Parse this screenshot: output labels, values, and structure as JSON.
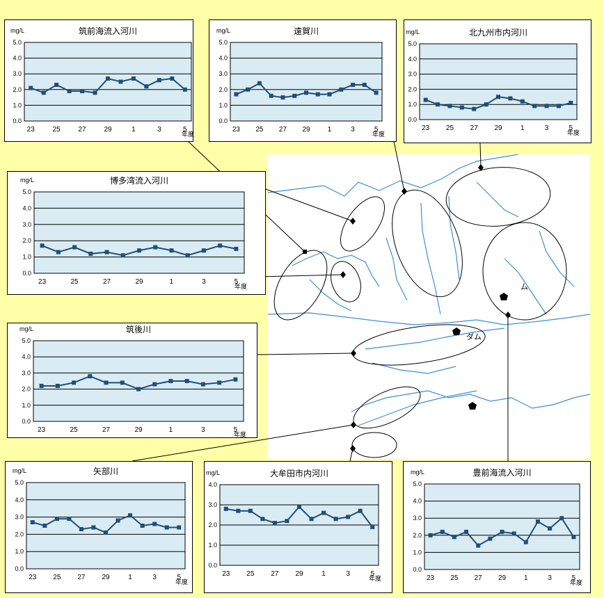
{
  "colors": {
    "background": "#ffffa8",
    "plot_bg": "#d9ecf3",
    "series": "#1f4e79",
    "grid": "#000000",
    "map_line": "#3a8fd8"
  },
  "common": {
    "unit": "mg/L",
    "year_suffix": "年度"
  },
  "map": {
    "labels": [
      "ダム",
      "ム"
    ]
  },
  "chart_data": [
    {
      "type": "line",
      "title": "筑前海流入河川",
      "categories": [
        "23",
        "24",
        "25",
        "26",
        "27",
        "28",
        "29",
        "30",
        "1",
        "2",
        "3",
        "4",
        "5"
      ],
      "ylim": [
        0,
        5
      ],
      "ylabel": "mg/L",
      "xlabel": "年度",
      "yticks": [
        "0.0",
        "1.0",
        "2.0",
        "3.0",
        "4.0",
        "5.0"
      ],
      "xticks": [
        "23",
        "25",
        "27",
        "29",
        "1",
        "3",
        "5"
      ],
      "values": [
        2.1,
        1.8,
        2.3,
        1.9,
        1.9,
        1.8,
        2.7,
        2.5,
        2.7,
        2.2,
        2.6,
        2.7,
        2.0
      ]
    },
    {
      "type": "line",
      "title": "遠賀川",
      "categories": [
        "23",
        "24",
        "25",
        "26",
        "27",
        "28",
        "29",
        "30",
        "1",
        "2",
        "3",
        "4",
        "5"
      ],
      "ylim": [
        0,
        5
      ],
      "ylabel": "mg/L",
      "xlabel": "年度",
      "yticks": [
        "0.0",
        "1.0",
        "2.0",
        "3.0",
        "4.0",
        "5.0"
      ],
      "xticks": [
        "23",
        "25",
        "27",
        "29",
        "1",
        "3",
        "5"
      ],
      "values": [
        1.7,
        2.0,
        2.4,
        1.6,
        1.5,
        1.6,
        1.8,
        1.7,
        1.7,
        2.0,
        2.3,
        2.3,
        1.8
      ]
    },
    {
      "type": "line",
      "title": "北九州市内河川",
      "categories": [
        "23",
        "24",
        "25",
        "26",
        "27",
        "28",
        "29",
        "30",
        "1",
        "2",
        "3",
        "4",
        "5"
      ],
      "ylim": [
        0,
        5
      ],
      "ylabel": "mg/L",
      "xlabel": "年度",
      "yticks": [
        "0.0",
        "1.0",
        "2.0",
        "3.0",
        "4.0",
        "5.0"
      ],
      "xticks": [
        "23",
        "25",
        "27",
        "29",
        "1",
        "3",
        "5"
      ],
      "values": [
        1.3,
        1.0,
        0.9,
        0.8,
        0.7,
        1.0,
        1.5,
        1.4,
        1.2,
        0.9,
        0.9,
        0.9,
        1.1
      ]
    },
    {
      "type": "line",
      "title": "博多湾流入河川",
      "categories": [
        "23",
        "24",
        "25",
        "26",
        "27",
        "28",
        "29",
        "30",
        "1",
        "2",
        "3",
        "4",
        "5"
      ],
      "ylim": [
        0,
        5
      ],
      "ylabel": "mg/L",
      "xlabel": "年度",
      "yticks": [
        "0.0",
        "1.0",
        "2.0",
        "3.0",
        "4.0",
        "5.0"
      ],
      "xticks": [
        "23",
        "25",
        "27",
        "29",
        "1",
        "3",
        "5"
      ],
      "values": [
        1.7,
        1.3,
        1.6,
        1.2,
        1.3,
        1.1,
        1.4,
        1.6,
        1.4,
        1.1,
        1.4,
        1.7,
        1.5
      ]
    },
    {
      "type": "line",
      "title": "筑後川",
      "categories": [
        "23",
        "24",
        "25",
        "26",
        "27",
        "28",
        "29",
        "30",
        "1",
        "2",
        "3",
        "4",
        "5"
      ],
      "ylim": [
        0,
        5
      ],
      "ylabel": "mg/L",
      "xlabel": "年度",
      "yticks": [
        "0.0",
        "1.0",
        "2.0",
        "3.0",
        "4.0",
        "5.0"
      ],
      "xticks": [
        "23",
        "25",
        "27",
        "29",
        "1",
        "3",
        "5"
      ],
      "values": [
        2.2,
        2.2,
        2.4,
        2.8,
        2.4,
        2.4,
        2.0,
        2.3,
        2.5,
        2.5,
        2.3,
        2.4,
        2.6
      ]
    },
    {
      "type": "line",
      "title": "矢部川",
      "categories": [
        "23",
        "24",
        "25",
        "26",
        "27",
        "28",
        "29",
        "30",
        "1",
        "2",
        "3",
        "4",
        "5"
      ],
      "ylim": [
        0,
        5
      ],
      "ylabel": "mg/L",
      "xlabel": "年度",
      "yticks": [
        "0.0",
        "1.0",
        "2.0",
        "3.0",
        "4.0",
        "5.0"
      ],
      "xticks": [
        "23",
        "25",
        "27",
        "29",
        "1",
        "3",
        "5"
      ],
      "values": [
        2.7,
        2.5,
        2.9,
        2.9,
        2.3,
        2.4,
        2.1,
        2.8,
        3.1,
        2.5,
        2.6,
        2.4,
        2.4
      ]
    },
    {
      "type": "line",
      "title": "大牟田市内河川",
      "categories": [
        "23",
        "24",
        "25",
        "26",
        "27",
        "28",
        "29",
        "30",
        "1",
        "2",
        "3",
        "4",
        "5"
      ],
      "ylim": [
        0,
        4
      ],
      "ylabel": "mg/L",
      "xlabel": "年度",
      "yticks": [
        "0.0",
        "1.0",
        "2.0",
        "3.0",
        "4.0"
      ],
      "xticks": [
        "23",
        "25",
        "27",
        "29",
        "1",
        "3",
        "5"
      ],
      "values": [
        2.8,
        2.7,
        2.7,
        2.3,
        2.1,
        2.2,
        2.9,
        2.3,
        2.6,
        2.3,
        2.4,
        2.7,
        1.9
      ]
    },
    {
      "type": "line",
      "title": "豊前海流入河川",
      "categories": [
        "23",
        "24",
        "25",
        "26",
        "27",
        "28",
        "29",
        "30",
        "1",
        "2",
        "3",
        "4",
        "5"
      ],
      "ylim": [
        0,
        5
      ],
      "ylabel": "mg/L",
      "xlabel": "年度",
      "yticks": [
        "0.0",
        "1.0",
        "2.0",
        "3.0",
        "4.0",
        "5.0"
      ],
      "xticks": [
        "23",
        "25",
        "27",
        "29",
        "1",
        "3",
        "5"
      ],
      "values": [
        2.0,
        2.2,
        1.9,
        2.2,
        1.4,
        1.8,
        2.2,
        2.1,
        1.6,
        2.8,
        2.4,
        3.0,
        1.9
      ]
    }
  ]
}
